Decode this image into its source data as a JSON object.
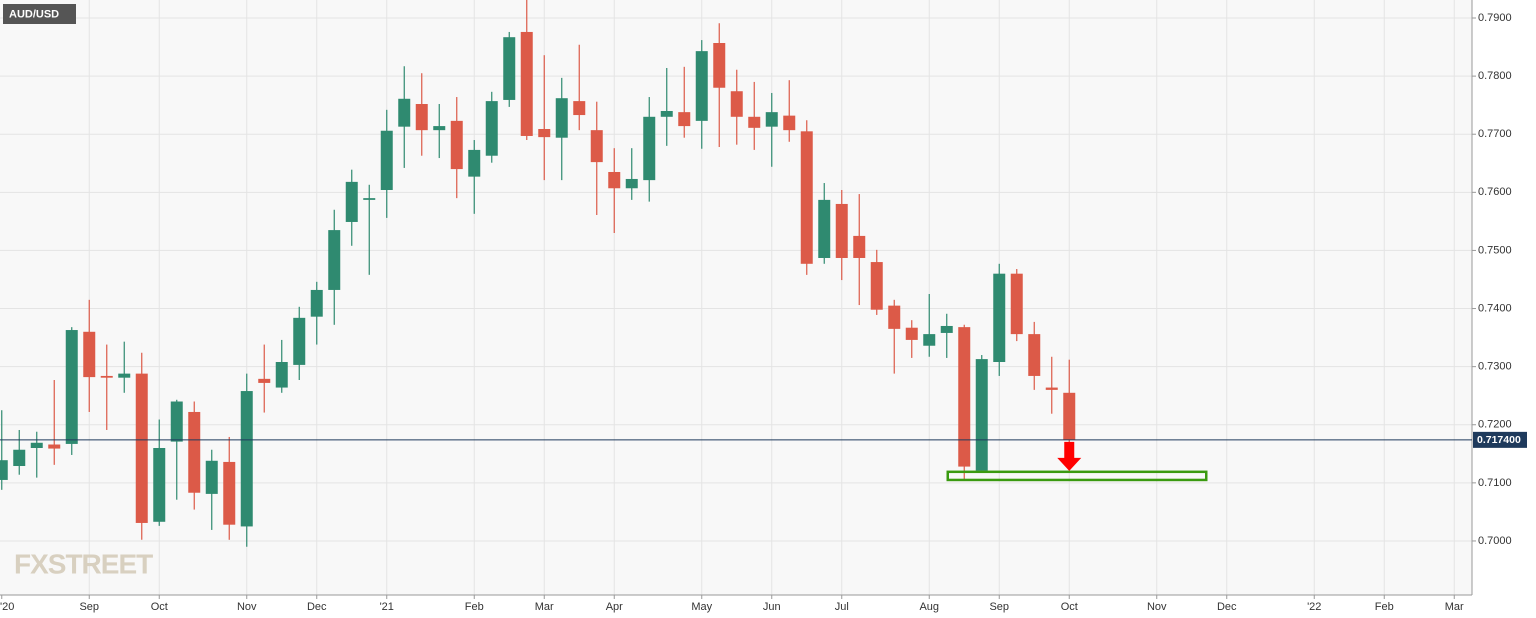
{
  "chart_data": {
    "type": "candlestick",
    "title": "AUD/USD",
    "watermark": "FXSTREET",
    "categories": [
      "'20",
      null,
      null,
      null,
      null,
      "Sep",
      null,
      null,
      null,
      "Oct",
      null,
      null,
      null,
      null,
      "Nov",
      null,
      null,
      null,
      "Dec",
      null,
      null,
      null,
      "'21",
      null,
      null,
      null,
      null,
      "Feb",
      null,
      null,
      null,
      "Mar",
      null,
      null,
      null,
      "Apr",
      null,
      null,
      null,
      null,
      "May",
      null,
      null,
      null,
      "Jun",
      null,
      null,
      null,
      "Jul",
      null,
      null,
      null,
      null,
      "Aug",
      null,
      null,
      null,
      "Sep",
      null,
      null,
      null,
      "Oct",
      null,
      null,
      null,
      null,
      "Nov",
      null,
      null,
      null,
      "Dec",
      null,
      null,
      null,
      null,
      "'22",
      null,
      null,
      null,
      "Feb",
      null,
      null,
      null,
      "Mar"
    ],
    "open": [
      0.7105,
      0.7129,
      0.716,
      0.7166,
      0.7167,
      0.736,
      0.7284,
      0.7281,
      0.7288,
      0.7033,
      0.7171,
      0.7222,
      0.7081,
      0.7136,
      0.7025,
      0.7279,
      0.7264,
      0.7303,
      0.7386,
      0.7432,
      0.7549,
      0.7587,
      0.7604,
      0.7713,
      0.7752,
      0.7707,
      0.7723,
      0.7627,
      0.7663,
      0.7759,
      0.7876,
      0.7709,
      0.7694,
      0.7757,
      0.7707,
      0.7635,
      0.7607,
      0.7621,
      0.773,
      0.7738,
      0.7723,
      0.7857,
      0.7774,
      0.773,
      0.7713,
      0.7732,
      0.7705,
      0.7487,
      0.758,
      0.7525,
      0.748,
      0.7405,
      0.7367,
      0.7336,
      0.7358,
      0.7368,
      0.7121,
      0.7308,
      0.746,
      0.7356,
      0.7264,
      0.7255,
      null,
      null,
      null,
      null,
      null,
      null,
      null,
      null,
      null,
      null,
      null,
      null,
      null,
      null,
      null,
      null,
      null,
      null,
      null,
      null,
      null,
      null
    ],
    "high": [
      0.7225,
      0.7191,
      0.7188,
      0.7277,
      0.7368,
      0.7415,
      0.7338,
      0.7343,
      0.7324,
      0.7209,
      0.7243,
      0.724,
      0.7157,
      0.7179,
      0.7288,
      0.7338,
      0.7346,
      0.7403,
      0.7446,
      0.757,
      0.7639,
      0.7613,
      0.7742,
      0.7817,
      0.7805,
      0.7752,
      0.7764,
      0.769,
      0.7773,
      0.7876,
      0.7931,
      0.7836,
      0.7797,
      0.7854,
      0.7756,
      0.7676,
      0.7676,
      0.7764,
      0.7814,
      0.7816,
      0.7862,
      0.7891,
      0.7811,
      0.779,
      0.7771,
      0.7793,
      0.7724,
      0.7616,
      0.7604,
      0.7597,
      0.7501,
      0.7415,
      0.738,
      0.7425,
      0.7391,
      0.7372,
      0.732,
      0.7477,
      0.7468,
      0.7377,
      0.7317,
      0.7312,
      null,
      null,
      null,
      null,
      null,
      null,
      null,
      null,
      null,
      null,
      null,
      null,
      null,
      null,
      null,
      null,
      null,
      null,
      null,
      null,
      null,
      null
    ],
    "low": [
      0.7088,
      0.7114,
      0.7109,
      0.7131,
      0.7148,
      0.7222,
      0.7191,
      0.7255,
      0.7002,
      0.7026,
      0.7071,
      0.7054,
      0.7019,
      0.7002,
      0.699,
      0.7221,
      0.7255,
      0.7277,
      0.7338,
      0.7372,
      0.7508,
      0.7458,
      0.7556,
      0.7642,
      0.7663,
      0.7659,
      0.759,
      0.7563,
      0.7651,
      0.7747,
      0.769,
      0.7621,
      0.7621,
      0.7707,
      0.7561,
      0.753,
      0.7587,
      0.7584,
      0.768,
      0.7694,
      0.7675,
      0.7678,
      0.7682,
      0.7673,
      0.7644,
      0.7687,
      0.7458,
      0.7477,
      0.7449,
      0.7406,
      0.7389,
      0.7288,
      0.7315,
      0.7317,
      0.7315,
      0.7105,
      0.7121,
      0.7284,
      0.7344,
      0.726,
      0.7219,
      0.7165,
      null,
      null,
      null,
      null,
      null,
      null,
      null,
      null,
      null,
      null,
      null,
      null,
      null,
      null,
      null,
      null,
      null,
      null,
      null,
      null,
      null,
      null
    ],
    "close": [
      0.7139,
      0.7157,
      0.7169,
      0.7159,
      0.7363,
      0.7282,
      0.7281,
      0.7288,
      0.7031,
      0.716,
      0.724,
      0.7083,
      0.7138,
      0.7028,
      0.7258,
      0.7272,
      0.7308,
      0.7384,
      0.7432,
      0.7535,
      0.7618,
      0.759,
      0.7706,
      0.7761,
      0.7707,
      0.7714,
      0.764,
      0.7673,
      0.7757,
      0.7867,
      0.7697,
      0.7695,
      0.7762,
      0.7733,
      0.7652,
      0.7607,
      0.7623,
      0.773,
      0.774,
      0.7714,
      0.7843,
      0.778,
      0.773,
      0.7711,
      0.7738,
      0.7707,
      0.7477,
      0.7587,
      0.7487,
      0.7487,
      0.7398,
      0.7365,
      0.7346,
      0.7356,
      0.737,
      0.7128,
      0.7313,
      0.746,
      0.7356,
      0.7284,
      0.726,
      0.7174,
      null,
      null,
      null,
      null,
      null,
      null,
      null,
      null,
      null,
      null,
      null,
      null,
      null,
      null,
      null,
      null,
      null,
      null,
      null,
      null,
      null,
      null
    ],
    "up_color": "#2f8a70",
    "down_color": "#dc5a48",
    "ylim": [
      0.6907,
      0.7931
    ],
    "yticks": [
      {
        "value": 0.7,
        "label": "0.7000"
      },
      {
        "value": 0.71,
        "label": "0.7100"
      },
      {
        "value": 0.72,
        "label": "0.7200"
      },
      {
        "value": 0.73,
        "label": "0.7300"
      },
      {
        "value": 0.74,
        "label": "0.7400"
      },
      {
        "value": 0.75,
        "label": "0.7500"
      },
      {
        "value": 0.76,
        "label": "0.7600"
      },
      {
        "value": 0.77,
        "label": "0.7700"
      },
      {
        "value": 0.78,
        "label": "0.7800"
      },
      {
        "value": 0.79,
        "label": "0.7900"
      }
    ],
    "grid": true,
    "last_price": {
      "value": 0.7174,
      "label": "0.717400"
    },
    "support_zone": [
      0.7105,
      0.7119
    ]
  }
}
